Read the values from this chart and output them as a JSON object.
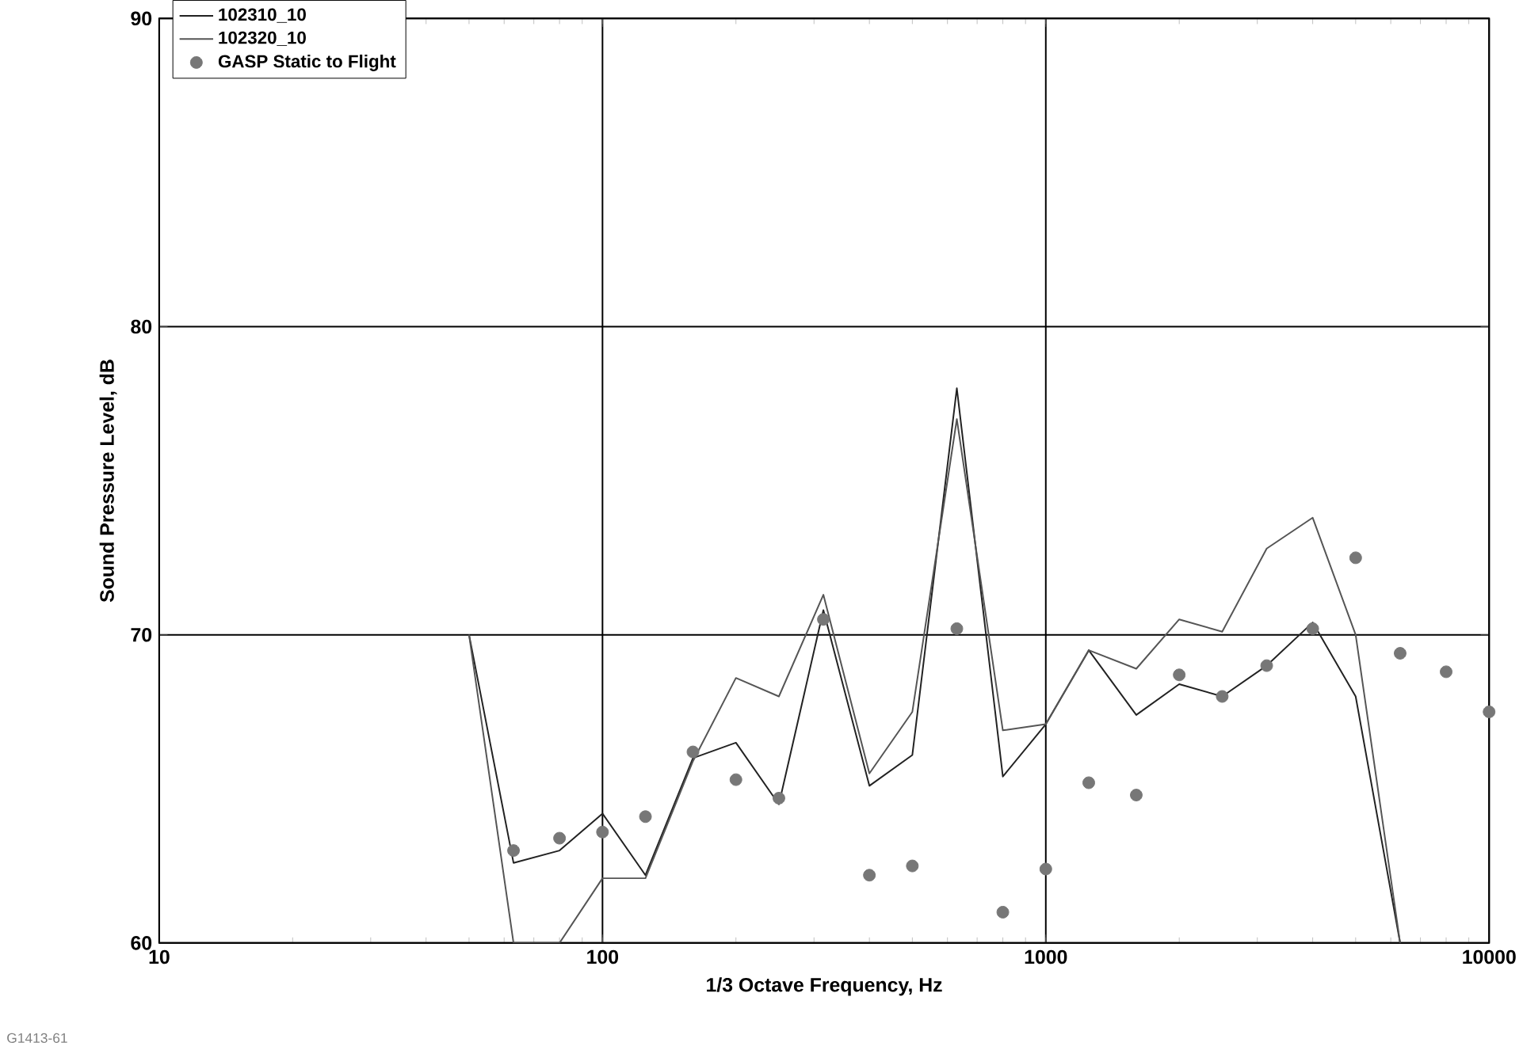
{
  "chart_data": {
    "type": "line",
    "xlabel": "1/3 Octave Frequency, Hz",
    "ylabel": "Sound Pressure Level, dB",
    "x": [
      50,
      63,
      80,
      100,
      125,
      160,
      200,
      250,
      315,
      400,
      500,
      630,
      800,
      1000,
      1250,
      1600,
      2000,
      2500,
      3150,
      4000,
      5000,
      6300,
      8000,
      10000
    ],
    "series": [
      {
        "name": "102310_10",
        "color": "#222222",
        "marker": "none",
        "values": [
          70,
          62.6,
          63.0,
          64.2,
          62.2,
          66.0,
          66.5,
          64.5,
          70.8,
          65.1,
          66.1,
          78,
          65.4,
          67.1,
          69.5,
          67.4,
          68.4,
          68.0,
          69.0,
          70.4,
          68.0,
          60,
          null,
          null
        ]
      },
      {
        "name": "102320_10",
        "color": "#555555",
        "marker": "none",
        "values": [
          70,
          60,
          60,
          62.1,
          62.1,
          65.9,
          68.6,
          68.0,
          71.3,
          65.5,
          67.5,
          77,
          66.9,
          67.1,
          69.5,
          68.9,
          70.5,
          70.1,
          72.8,
          73.8,
          70.0,
          60,
          null,
          null
        ]
      },
      {
        "name": "GASP Static to Flight",
        "type": "scatter",
        "marker": "circle",
        "color": "#777777",
        "values": [
          null,
          63.0,
          63.4,
          63.6,
          64.1,
          66.2,
          65.3,
          64.7,
          70.5,
          62.2,
          62.5,
          70.2,
          61.0,
          62.4,
          65.2,
          64.8,
          68.7,
          68.0,
          69.0,
          70.2,
          72.5,
          69.4,
          68.8,
          67.5
        ]
      }
    ],
    "log": "x",
    "xlim": [
      10,
      10000
    ],
    "xticks": [
      10,
      100,
      1000,
      10000
    ],
    "ylim": [
      60,
      90
    ],
    "yticks": [
      60,
      70,
      80,
      90
    ],
    "grid": true,
    "legend": "top left",
    "annotations": [
      "G1413-61"
    ]
  }
}
